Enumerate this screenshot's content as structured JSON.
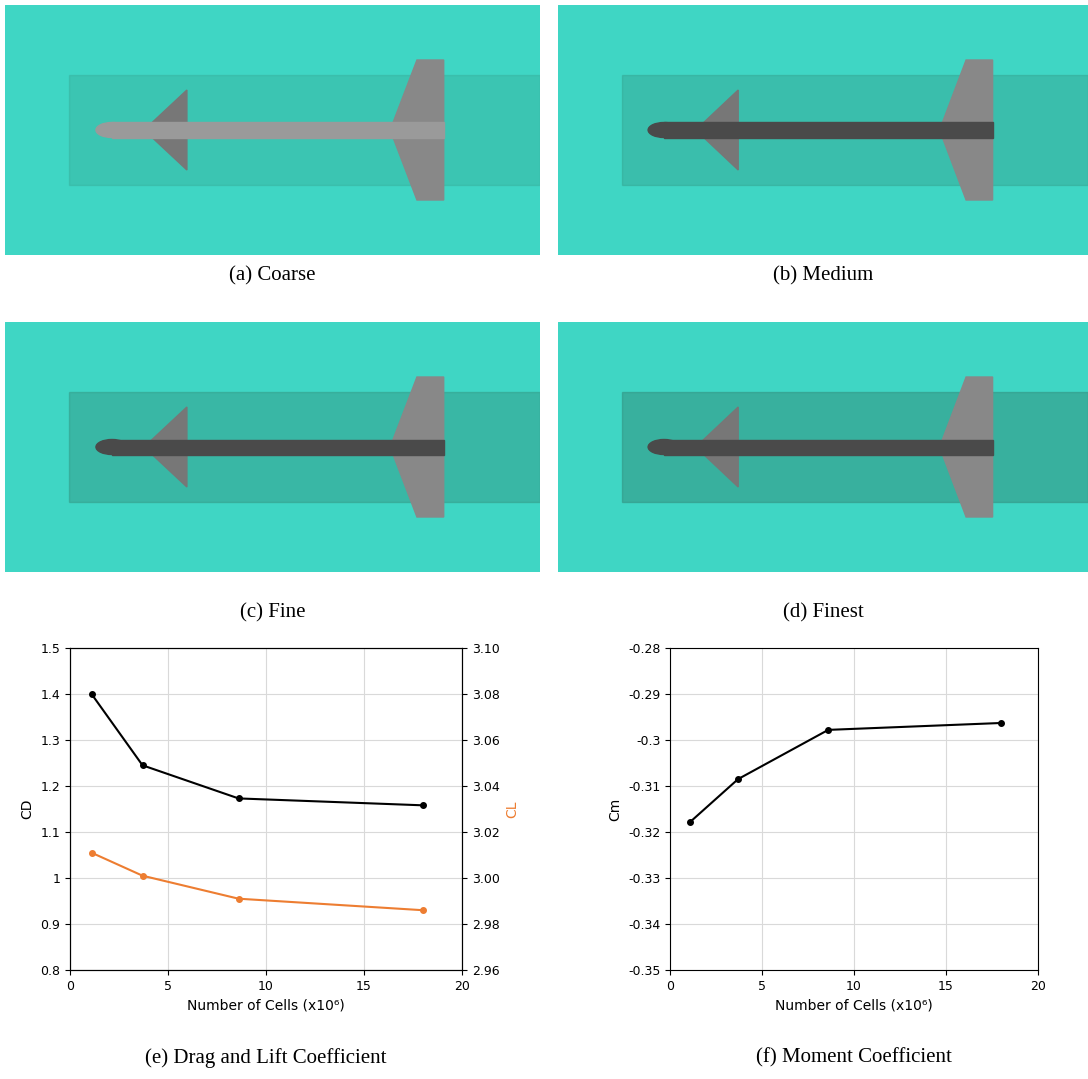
{
  "panels": [
    {
      "caption": "(a) Coarse"
    },
    {
      "caption": "(b) Medium"
    },
    {
      "caption": "(c) Fine"
    },
    {
      "caption": "(d) Finest"
    }
  ],
  "chart_data": [
    {
      "type": "line",
      "title": "(e) Drag and Lift Coefficient",
      "x_label": "Number of Cells (x10⁶)",
      "y_label": "CD",
      "y2_label": "CL",
      "x": [
        1.1,
        3.7,
        8.6,
        18
      ],
      "series": [
        {
          "name": "CD",
          "color": "#000000",
          "marker": "circle",
          "line_style": "solid",
          "values": [
            1.4,
            1.245,
            1.173,
            1.158
          ]
        },
        {
          "name": "CL",
          "color": "#ed7d31",
          "marker": "circle",
          "line_style": "solid",
          "axis": "y2",
          "values": [
            3.011,
            3.001,
            2.991,
            2.986
          ]
        }
      ],
      "xlim": [
        0,
        20
      ],
      "xticks": [
        0,
        5,
        10,
        15,
        20
      ],
      "ylim": [
        0.8,
        1.5
      ],
      "yticks": [
        0.8,
        0.9,
        1,
        1.1,
        1.2,
        1.3,
        1.4,
        1.5
      ],
      "y2lim": [
        2.96,
        3.1
      ],
      "y2ticks": [
        2.96,
        2.98,
        {
          "value": 3.0,
          "label": "3.00"
        },
        3.02,
        3.04,
        3.06,
        3.08,
        {
          "value": 3.1,
          "label": "3.10"
        }
      ],
      "grid": true
    },
    {
      "type": "line",
      "title": "(f) Moment Coefficient",
      "x_label": "Number of Cells (x10⁶)",
      "y_label": "Cm",
      "x": [
        1.1,
        3.7,
        8.6,
        18
      ],
      "series": [
        {
          "name": "Cm",
          "color": "#000000",
          "marker": "circle",
          "line_style": "solid",
          "values": [
            -0.3178,
            -0.3085,
            -0.2978,
            -0.2963
          ]
        }
      ],
      "xlim": [
        0,
        20
      ],
      "xticks": [
        0,
        5,
        10,
        15,
        20
      ],
      "ylim": [
        -0.35,
        -0.28
      ],
      "yticks": [
        -0.35,
        -0.34,
        -0.33,
        -0.32,
        -0.31,
        -0.3,
        -0.29,
        -0.28
      ],
      "grid": true
    }
  ]
}
